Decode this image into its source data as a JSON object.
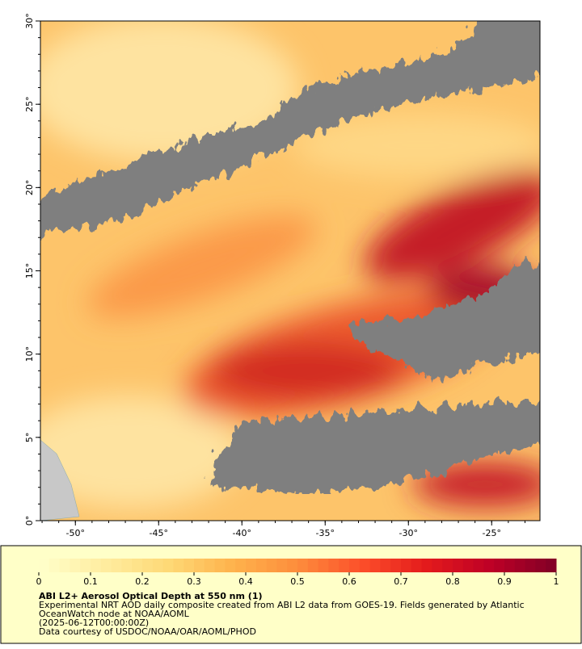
{
  "map": {
    "lon_range": [
      -52.1,
      -22.1
    ],
    "lat_range": [
      0,
      30
    ],
    "minor_tick_step": 1,
    "lat_ticks": [
      {
        "value": 0,
        "label": "0°"
      },
      {
        "value": 5,
        "label": "5°"
      },
      {
        "value": 10,
        "label": "10°"
      },
      {
        "value": 15,
        "label": "15°"
      },
      {
        "value": 20,
        "label": "20°"
      },
      {
        "value": 25,
        "label": "25°"
      },
      {
        "value": 30,
        "label": "30°"
      }
    ],
    "lon_ticks": [
      {
        "value": -50,
        "label": "-50°"
      },
      {
        "value": -45,
        "label": "-45°"
      },
      {
        "value": -40,
        "label": "-40°"
      },
      {
        "value": -35,
        "label": "-35°"
      },
      {
        "value": -30,
        "label": "-30°"
      },
      {
        "value": -25,
        "label": "-25°"
      }
    ]
  },
  "colorbar": {
    "lim": [
      0,
      1
    ],
    "levels": 50,
    "colors": [
      "#ffffcc",
      "#ffeda0",
      "#fed976",
      "#feb24c",
      "#fd8d3c",
      "#fc4e2a",
      "#e31a1c",
      "#bd0026",
      "#800026"
    ],
    "ticks": [
      0,
      0.1,
      0.2,
      0.3,
      0.4,
      0.5,
      0.6,
      0.7,
      0.8,
      0.9,
      1
    ]
  },
  "caption": {
    "title": "ABI L2+ Aerosol Optical Depth at 550 nm (1)",
    "lines": [
      "Experimental NRT AOD daily composite created from ABI L2 data from GOES-19. Fields generated by Atlantic",
      "OceanWatch node at NOAA/AOML",
      "(2025-06-12T00:00:00Z)",
      "Data courtesy of USDOC/NOAA/OAR/AOML/PHOD"
    ]
  }
}
